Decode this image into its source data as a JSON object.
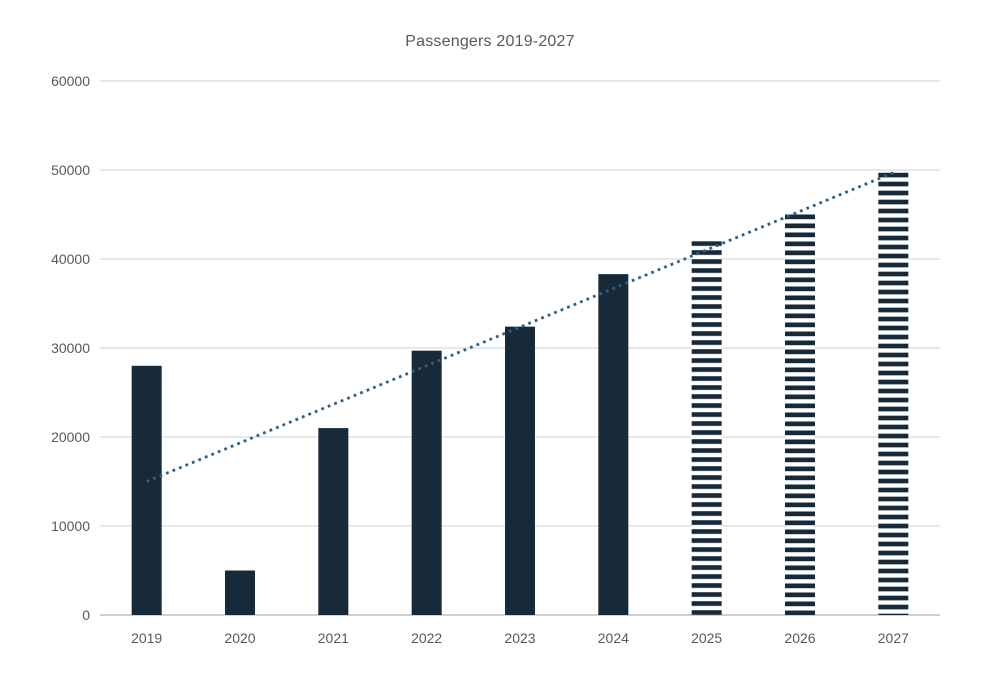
{
  "title": "Passengers 2019-2027",
  "chart_data": {
    "type": "bar",
    "title": "Passengers 2019-2027",
    "categories": [
      "2019",
      "2020",
      "2021",
      "2022",
      "2023",
      "2024",
      "2025",
      "2026",
      "2027"
    ],
    "values": [
      28000,
      5000,
      21000,
      29700,
      32400,
      38300,
      42000,
      45000,
      49700
    ],
    "bar_styles": [
      "solid",
      "solid",
      "solid",
      "solid",
      "solid",
      "solid",
      "striped",
      "striped",
      "striped"
    ],
    "trendline": {
      "style": "dotted",
      "shape": "linear",
      "start_value": 15000,
      "end_value": 49700
    },
    "xlabel": "",
    "ylabel": "",
    "ylim": [
      0,
      60000
    ],
    "ytick_step": 10000,
    "ytick_labels": [
      "0",
      "10000",
      "20000",
      "30000",
      "40000",
      "50000",
      "60000"
    ],
    "grid": "horizontal",
    "legend": "none",
    "colors": {
      "bar": "#172a3a",
      "trendline": "#2e6086",
      "gridline": "#d9d9d9",
      "axis_line": "#cfcfcf",
      "text": "#595959",
      "background": "#ffffff"
    }
  }
}
